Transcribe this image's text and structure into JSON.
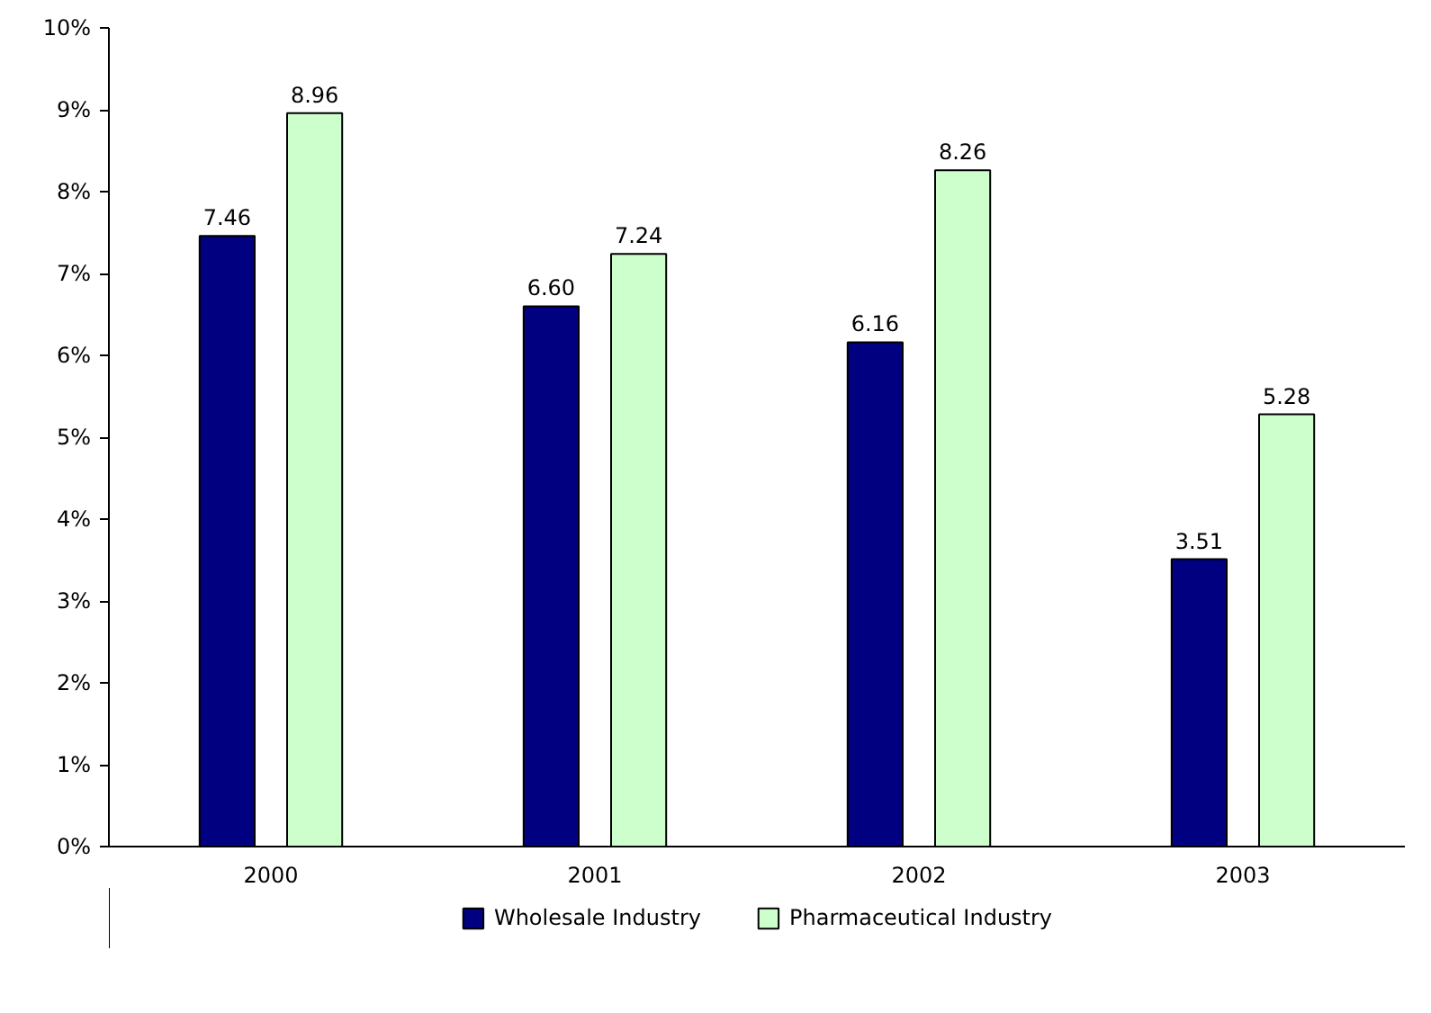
{
  "chart_data": {
    "type": "bar",
    "categories": [
      "2000",
      "2001",
      "2002",
      "2003"
    ],
    "series": [
      {
        "name": "Wholesale Industry",
        "color": "#000080",
        "values": [
          7.46,
          6.6,
          6.16,
          3.51
        ],
        "value_labels": [
          "7.46",
          "6.60",
          "6.16",
          "3.51"
        ]
      },
      {
        "name": "Pharmaceutical Industry",
        "color": "#ccffcc",
        "values": [
          8.96,
          7.24,
          8.26,
          5.28
        ],
        "value_labels": [
          "8.96",
          "7.24",
          "8.26",
          "5.28"
        ]
      }
    ],
    "ylim": [
      0,
      10
    ],
    "yticks": [
      {
        "value": 0,
        "label": "0%"
      },
      {
        "value": 1,
        "label": "1%"
      },
      {
        "value": 2,
        "label": "2%"
      },
      {
        "value": 3,
        "label": "3%"
      },
      {
        "value": 4,
        "label": "4%"
      },
      {
        "value": 5,
        "label": "5%"
      },
      {
        "value": 6,
        "label": "6%"
      },
      {
        "value": 7,
        "label": "7%"
      },
      {
        "value": 8,
        "label": "8%"
      },
      {
        "value": 9,
        "label": "9%"
      },
      {
        "value": 10,
        "label": "10%"
      }
    ],
    "grid": false,
    "legend": "bottom"
  }
}
